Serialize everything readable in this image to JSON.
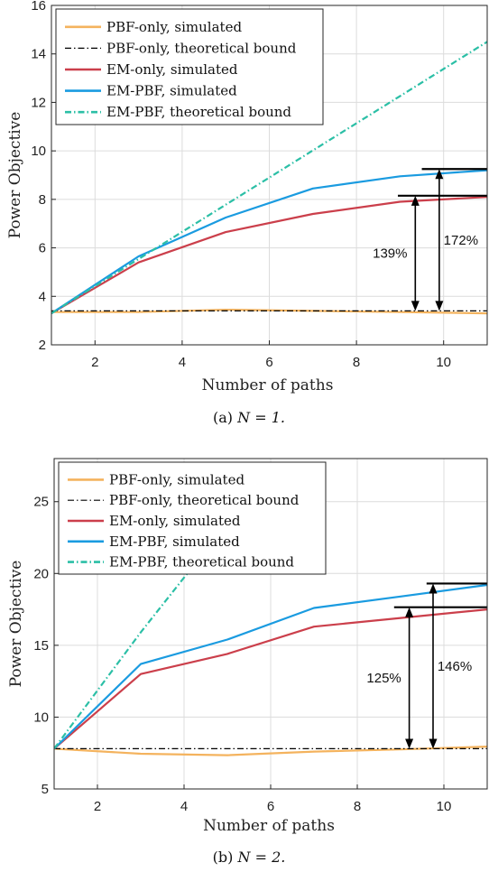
{
  "chart_data": [
    {
      "type": "line",
      "caption_prefix": "(a)",
      "caption_math": "N = 1.",
      "xlabel": "Number of paths",
      "ylabel": "Power Objective",
      "xlim": [
        1,
        11
      ],
      "ylim": [
        2,
        16
      ],
      "xticks": [
        2,
        4,
        6,
        8,
        10
      ],
      "yticks": [
        2,
        4,
        6,
        8,
        10,
        12,
        14,
        16
      ],
      "grid": true,
      "legend_position": "top-left",
      "series": [
        {
          "name": "PBF-only, simulated",
          "color": "#f4b35e",
          "dash": "solid",
          "x": [
            1,
            3,
            5,
            7,
            9,
            11
          ],
          "y": [
            3.35,
            3.35,
            3.45,
            3.4,
            3.35,
            3.3
          ]
        },
        {
          "name": "PBF-only, theoretical bound",
          "color": "#000000",
          "dash": "dashdot",
          "x": [
            1,
            11
          ],
          "y": [
            3.4,
            3.4
          ]
        },
        {
          "name": "EM-only, simulated",
          "color": "#cb3f4b",
          "dash": "solid",
          "x": [
            1,
            3,
            5,
            7,
            9,
            11
          ],
          "y": [
            3.3,
            5.4,
            6.65,
            7.4,
            7.9,
            8.1
          ]
        },
        {
          "name": "EM-PBF, simulated",
          "color": "#1a9be0",
          "dash": "solid",
          "x": [
            1,
            3,
            5,
            7,
            9,
            11
          ],
          "y": [
            3.3,
            5.65,
            7.25,
            8.45,
            8.95,
            9.2
          ]
        },
        {
          "name": "EM-PBF, theoretical bound",
          "color": "#2bbfa6",
          "dash": "dashdot",
          "x": [
            1,
            11
          ],
          "y": [
            3.3,
            14.5
          ]
        }
      ],
      "annotations": [
        {
          "label": "139%",
          "x": 9.35,
          "y_from": 3.4,
          "y_to": 8.15,
          "bar_x": [
            8.95,
            11.0
          ]
        },
        {
          "label": "172%",
          "x": 9.9,
          "y_from": 3.4,
          "y_to": 9.25,
          "bar_x": [
            9.5,
            11.0
          ]
        }
      ]
    },
    {
      "type": "line",
      "caption_prefix": "(b)",
      "caption_math": "N = 2.",
      "xlabel": "Number of paths",
      "ylabel": "Power Objective",
      "xlim": [
        1,
        11
      ],
      "ylim": [
        5,
        28
      ],
      "xticks": [
        2,
        4,
        6,
        8,
        10
      ],
      "yticks": [
        5,
        10,
        15,
        20,
        25
      ],
      "grid": true,
      "legend_position": "top-left",
      "series": [
        {
          "name": "PBF-only, simulated",
          "color": "#f4b35e",
          "dash": "solid",
          "x": [
            1,
            3,
            5,
            7,
            9,
            11
          ],
          "y": [
            7.8,
            7.45,
            7.35,
            7.6,
            7.75,
            7.95
          ]
        },
        {
          "name": "PBF-only, theoretical bound",
          "color": "#000000",
          "dash": "dashdot",
          "x": [
            1,
            11
          ],
          "y": [
            7.8,
            7.8
          ]
        },
        {
          "name": "EM-only, simulated",
          "color": "#cb3f4b",
          "dash": "solid",
          "x": [
            1,
            3,
            5,
            7,
            9,
            11
          ],
          "y": [
            7.8,
            13.0,
            14.4,
            16.3,
            16.9,
            17.5
          ]
        },
        {
          "name": "EM-PBF, simulated",
          "color": "#1a9be0",
          "dash": "solid",
          "x": [
            1,
            3,
            5,
            7,
            9,
            11
          ],
          "y": [
            7.8,
            13.7,
            15.4,
            17.6,
            18.4,
            19.2
          ]
        },
        {
          "name": "EM-PBF, theoretical bound",
          "color": "#2bbfa6",
          "dash": "dashdot",
          "x": [
            1,
            3,
            4.6
          ],
          "y": [
            7.8,
            15.9,
            22.0
          ]
        }
      ],
      "annotations": [
        {
          "label": "125%",
          "x": 9.2,
          "y_from": 7.8,
          "y_to": 17.65,
          "bar_x": [
            8.85,
            11.0
          ]
        },
        {
          "label": "146%",
          "x": 9.75,
          "y_from": 7.8,
          "y_to": 19.3,
          "bar_x": [
            9.6,
            11.0
          ]
        }
      ]
    }
  ]
}
